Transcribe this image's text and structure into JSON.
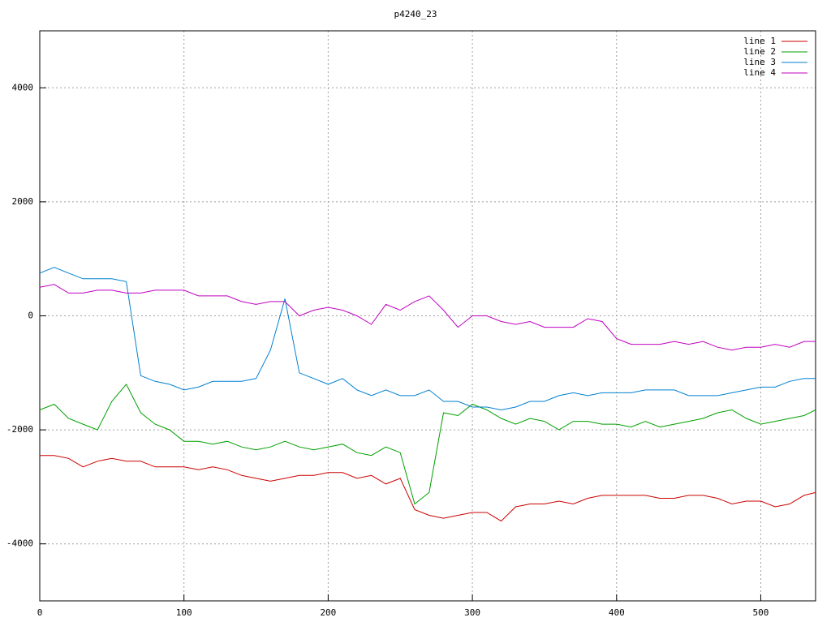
{
  "chart_data": {
    "type": "line",
    "title": "p4240_23",
    "x": [
      0,
      10,
      20,
      30,
      40,
      50,
      60,
      70,
      80,
      90,
      100,
      110,
      120,
      130,
      140,
      150,
      160,
      170,
      180,
      190,
      200,
      210,
      220,
      230,
      240,
      250,
      260,
      270,
      280,
      290,
      300,
      310,
      320,
      330,
      340,
      350,
      360,
      370,
      380,
      390,
      400,
      410,
      420,
      430,
      440,
      450,
      460,
      470,
      480,
      490,
      500,
      510,
      520,
      530,
      538
    ],
    "series": [
      {
        "name": "line 1",
        "color": "#cc0000",
        "values": [
          -2450,
          -2450,
          -2500,
          -2650,
          -2550,
          -2500,
          -2550,
          -2550,
          -2650,
          -2650,
          -2650,
          -2700,
          -2650,
          -2700,
          -2800,
          -2850,
          -2900,
          -2850,
          -2800,
          -2800,
          -2750,
          -2750,
          -2850,
          -2800,
          -2950,
          -2850,
          -3400,
          -3500,
          -3550,
          -3500,
          -3450,
          -3450,
          -3600,
          -3350,
          -3300,
          -3300,
          -3250,
          -3300,
          -3200,
          -3150,
          -3150,
          -3150,
          -3150,
          -3200,
          -3200,
          -3150,
          -3150,
          -3200,
          -3300,
          -3250,
          -3250,
          -3350,
          -3300,
          -3150,
          -3100
        ]
      },
      {
        "name": "line 2",
        "color": "#00a000",
        "values": [
          -1650,
          -1550,
          -1800,
          -1900,
          -2000,
          -1500,
          -1200,
          -1700,
          -1900,
          -2000,
          -2200,
          -2200,
          -2250,
          -2200,
          -2300,
          -2350,
          -2300,
          -2200,
          -2300,
          -2350,
          -2300,
          -2250,
          -2400,
          -2450,
          -2300,
          -2400,
          -3300,
          -3100,
          -1700,
          -1750,
          -1550,
          -1650,
          -1800,
          -1900,
          -1800,
          -1850,
          -2000,
          -1850,
          -1850,
          -1900,
          -1900,
          -1950,
          -1850,
          -1950,
          -1900,
          -1850,
          -1800,
          -1700,
          -1650,
          -1800,
          -1900,
          -1850,
          -1800,
          -1750,
          -1650
        ]
      },
      {
        "name": "line 3",
        "color": "#0080d0",
        "values": [
          750,
          850,
          750,
          650,
          650,
          650,
          600,
          -1050,
          -1150,
          -1200,
          -1300,
          -1250,
          -1150,
          -1150,
          -1150,
          -1100,
          -600,
          300,
          -1000,
          -1100,
          -1200,
          -1100,
          -1300,
          -1400,
          -1300,
          -1400,
          -1400,
          -1300,
          -1500,
          -1500,
          -1600,
          -1600,
          -1650,
          -1600,
          -1500,
          -1500,
          -1400,
          -1350,
          -1400,
          -1350,
          -1350,
          -1350,
          -1300,
          -1300,
          -1300,
          -1400,
          -1400,
          -1400,
          -1350,
          -1300,
          -1250,
          -1250,
          -1150,
          -1100,
          -1100
        ]
      },
      {
        "name": "line 4",
        "color": "#c000c0",
        "values": [
          500,
          550,
          400,
          400,
          450,
          450,
          400,
          400,
          450,
          450,
          450,
          350,
          350,
          350,
          250,
          200,
          250,
          250,
          0,
          100,
          150,
          100,
          0,
          -150,
          200,
          100,
          250,
          350,
          100,
          -200,
          0,
          0,
          -100,
          -150,
          -100,
          -200,
          -200,
          -200,
          -50,
          -100,
          -400,
          -500,
          -500,
          -500,
          -450,
          -500,
          -450,
          -550,
          -600,
          -550,
          -550,
          -500,
          -550,
          -450,
          -450
        ]
      }
    ],
    "xlim": [
      0,
      538
    ],
    "ylim": [
      -5000,
      5000
    ],
    "xticks": [
      0,
      100,
      200,
      300,
      400,
      500
    ],
    "yticks": [
      -4000,
      -2000,
      0,
      2000,
      4000
    ],
    "grid": true,
    "legend": "top-right"
  }
}
